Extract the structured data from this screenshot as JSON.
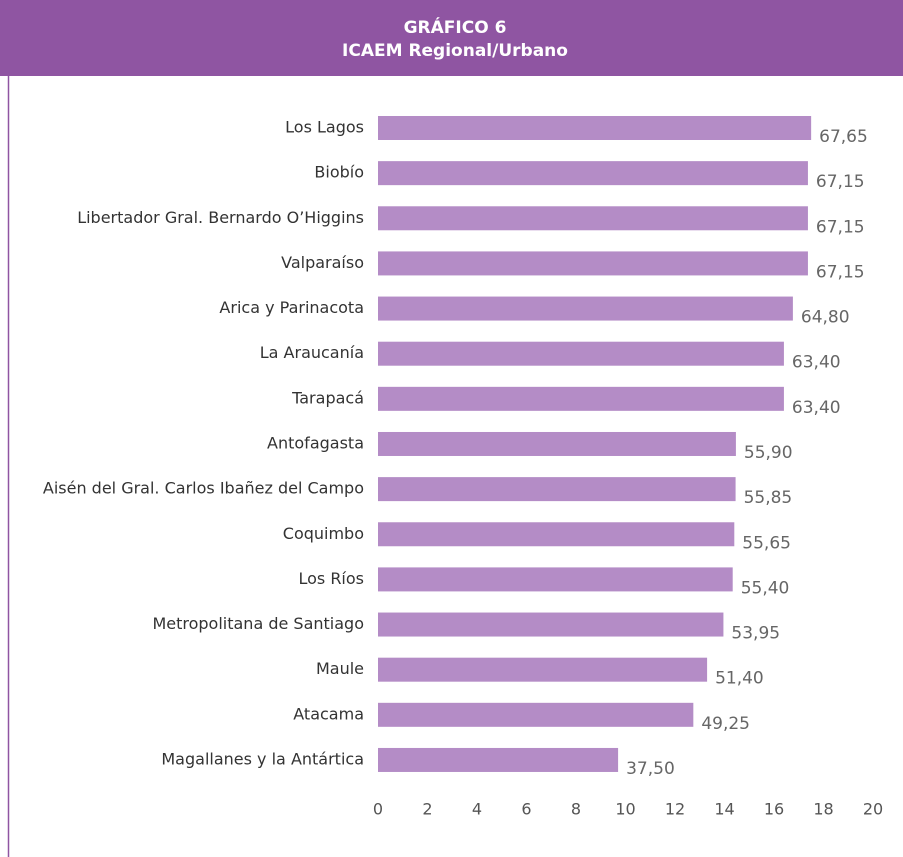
{
  "chart_data": {
    "type": "bar",
    "orientation": "horizontal",
    "title": "GRÁFICO 6",
    "subtitle": "ICAEM Regional/Urbano",
    "categories": [
      "Los Lagos",
      "Biobío",
      "Libertador Gral. Bernardo O’Higgins",
      "Valparaíso",
      "Arica y Parinacota",
      "La Araucanía",
      "Tarapacá",
      "Antofagasta",
      "Aisén  del Gral. Carlos Ibañez del Campo",
      "Coquimbo",
      "Los Ríos",
      "Metropolitana de Santiago",
      "Maule",
      "Atacama",
      "Magallanes y la Antártica"
    ],
    "values": [
      67.65,
      67.15,
      67.15,
      67.15,
      64.8,
      63.4,
      63.4,
      55.9,
      55.85,
      55.65,
      55.4,
      53.95,
      51.4,
      49.25,
      37.5
    ],
    "value_labels": [
      "67,65",
      "67,15",
      "67,15",
      "67,15",
      "64,80",
      "63,40",
      "63,40",
      "55,90",
      "55,85",
      "55,65",
      "55,40",
      "53,95",
      "51,40",
      "49,25",
      "37,50"
    ],
    "color": "#b48cc6",
    "xlim": [
      0,
      77
    ],
    "xtick_labels": [
      0,
      2,
      4,
      6,
      8,
      10,
      12,
      14,
      16,
      18,
      20
    ]
  }
}
